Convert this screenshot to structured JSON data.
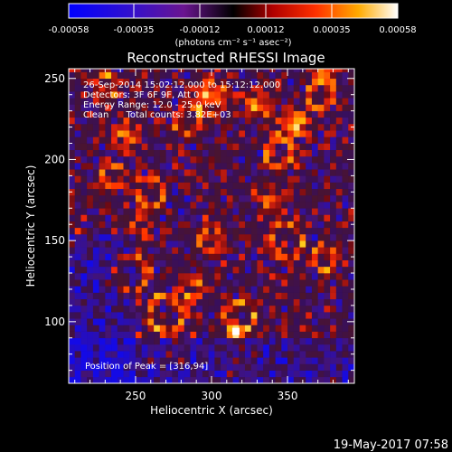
{
  "colorbar": {
    "ticks": [
      "-0.00058",
      "-0.00035",
      "-0.00012",
      "0.00012",
      "0.00035",
      "0.00058"
    ],
    "units": "(photons cm⁻² s⁻¹ asec⁻²)"
  },
  "chart_data": {
    "type": "heatmap",
    "title": "Reconstructed RHESSI Image",
    "xlabel": "Heliocentric X (arcsec)",
    "ylabel": "Heliocentric Y (arcsec)",
    "xlim": [
      206,
      394
    ],
    "ylim": [
      62,
      256
    ],
    "x_ticks": [
      250,
      300,
      350
    ],
    "y_ticks": [
      100,
      150,
      200,
      250
    ],
    "value_range": [
      -0.00058,
      0.00058
    ],
    "peak": [
      316,
      94
    ],
    "annotations": {
      "time_range": "26-Sep-2014 15:02:12.000 to 15:12:12.000",
      "detectors": "Detectors: 3F 6F 9F, Att 0",
      "energy": "Energy Range: 12.0 - 25.0 keV",
      "clean": "Clean      Total counts: 3.82E+03",
      "peak_label": "Position of Peak = [316,94]"
    }
  },
  "footer": {
    "date": "19-May-2017 07:58"
  }
}
